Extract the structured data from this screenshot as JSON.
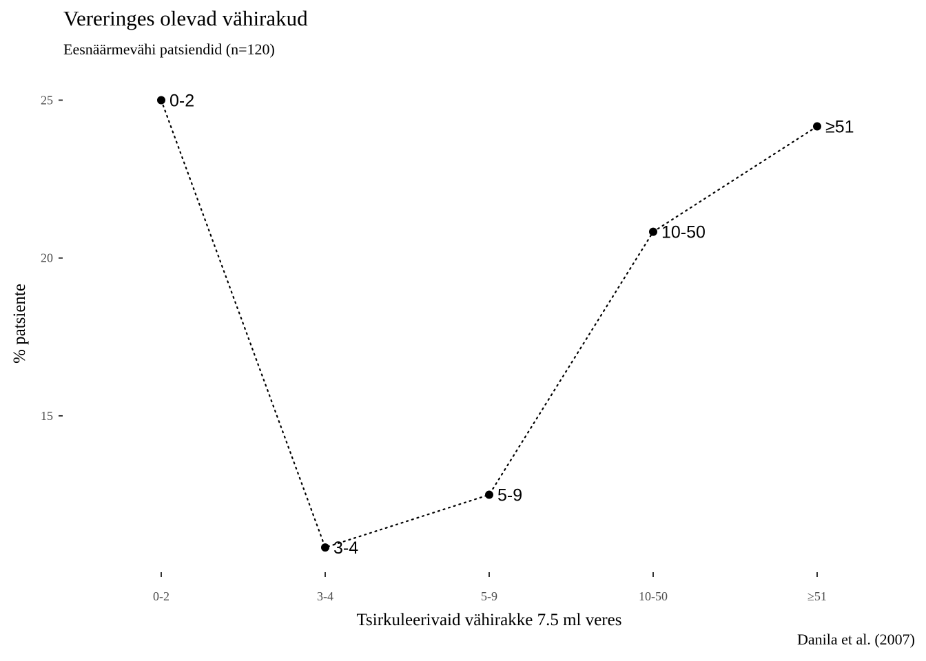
{
  "chart_data": {
    "type": "line",
    "title": "Vereringes olevad vähirakud",
    "subtitle": "Eesnäärmevähi patsiendid (n=120)",
    "caption": "Danila et al. (2007)",
    "xlabel": "Tsirkuleerivaid vähirakke 7.5 ml veres",
    "ylabel": "% patsiente",
    "categories": [
      "0-2",
      "3-4",
      "5-9",
      "10-50",
      "≥51"
    ],
    "values": [
      25.0,
      10.83,
      12.5,
      20.83,
      24.17
    ],
    "point_labels": [
      "0-2",
      "3-4",
      "5-9",
      "10-50",
      "≥51"
    ],
    "y_ticks": [
      15,
      20,
      25
    ],
    "ylim": [
      10.2,
      25.6
    ],
    "line_style": "dotted",
    "grid": false,
    "legend": "none",
    "colors": {
      "line": "#000000",
      "point": "#000000",
      "tick_label": "#4d4d4d",
      "tick_mark": "#333333"
    }
  }
}
